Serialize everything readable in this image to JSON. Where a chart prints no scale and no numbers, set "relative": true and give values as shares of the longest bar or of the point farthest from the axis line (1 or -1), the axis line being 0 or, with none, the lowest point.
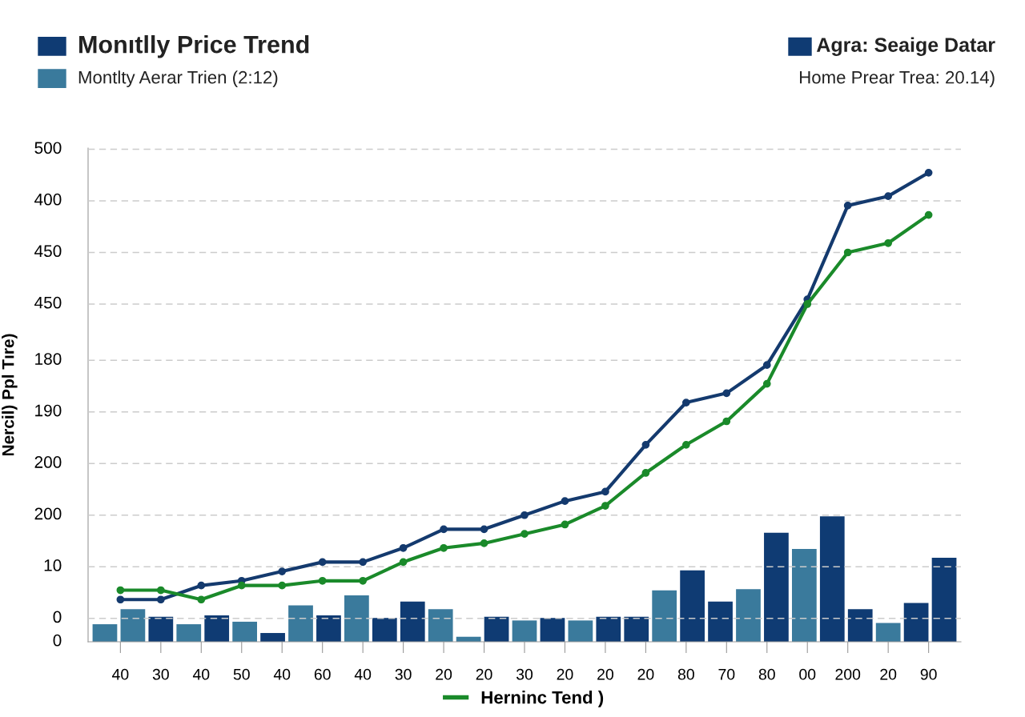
{
  "chart_data": [
    {
      "type": "bar",
      "relative": true,
      "title": "Monıtlly Price Trend",
      "subtitle": "Montlty Aerar Trien (2:12)",
      "categories": [
        null,
        null,
        null,
        null,
        null,
        null,
        null,
        null,
        null,
        null,
        null,
        null,
        null,
        null,
        null,
        null,
        null,
        null,
        null,
        null,
        null,
        null,
        null,
        null,
        null,
        null,
        null,
        null,
        null,
        null,
        null
      ],
      "values": [
        0.14,
        0.26,
        0.2,
        0.14,
        0.21,
        0.16,
        0.07,
        0.29,
        0.21,
        0.37,
        0.19,
        0.32,
        0.26,
        0.04,
        0.2,
        0.17,
        0.19,
        0.17,
        0.2,
        0.2,
        0.41,
        0.57,
        0.32,
        0.42,
        0.87,
        0.74,
        1,
        0.26,
        0.15,
        0.31,
        0.67
      ],
      "colors": [
        "#3a7a9c",
        "#3a7a9c",
        "#0f3b73",
        "#3a7a9c",
        "#0f3b73",
        "#3a7a9c",
        "#0f3b73",
        "#3a7a9c",
        "#0f3b73",
        "#3a7a9c",
        "#0f3b73",
        "#0f3b73",
        "#3a7a9c",
        "#3a7a9c",
        "#0f3b73",
        "#3a7a9c",
        "#0f3b73",
        "#3a7a9c",
        "#0f3b73",
        "#0f3b73",
        "#3a7a9c",
        "#0f3b73",
        "#0f3b73",
        "#3a7a9c",
        "#0f3b73",
        "#3a7a9c",
        "#0f3b73",
        "#0f3b73",
        "#3a7a9c",
        "#0f3b73",
        "#0f3b73"
      ]
    },
    {
      "type": "line",
      "relative": true,
      "legend": "bottom",
      "marker": "circle",
      "line_style": "solid",
      "title": "Agra: Seaige Datar",
      "subtitle": "Home Prear Trea: 20.14)",
      "ylabel": "Nercil) Ppl Tıre)",
      "annotations": [
        "500",
        "400",
        "450",
        "450",
        "180",
        "190",
        "200",
        "200",
        "10",
        "0",
        "0"
      ],
      "ref_lines": [
        {
          "axis": "y",
          "value": 1.05,
          "color": "#cccccc",
          "line_style": "dashed"
        },
        {
          "axis": "y",
          "value": 0.94,
          "color": "#cccccc",
          "line_style": "dashed"
        },
        {
          "axis": "y",
          "value": 0.83,
          "color": "#cccccc",
          "line_style": "dashed"
        },
        {
          "axis": "y",
          "value": 0.72,
          "color": "#cccccc",
          "line_style": "dashed"
        },
        {
          "axis": "y",
          "value": 0.6,
          "color": "#cccccc",
          "line_style": "dashed"
        },
        {
          "axis": "y",
          "value": 0.49,
          "color": "#cccccc",
          "line_style": "dashed"
        },
        {
          "axis": "y",
          "value": 0.38,
          "color": "#cccccc",
          "line_style": "dashed"
        },
        {
          "axis": "y",
          "value": 0.27,
          "color": "#cccccc",
          "line_style": "dashed"
        },
        {
          "axis": "y",
          "value": 0.16,
          "color": "#cccccc",
          "line_style": "dashed"
        },
        {
          "axis": "y",
          "value": 0.05,
          "color": "#cccccc",
          "line_style": "dashed"
        }
      ],
      "categories": [
        "40",
        "30",
        "40",
        "50",
        "40",
        "60",
        "40",
        "30",
        "20",
        "20",
        "30",
        "20",
        "20",
        "20",
        "80",
        "70",
        "80",
        "00",
        "200",
        "20",
        "90"
      ],
      "series": [
        {
          "color": "#143a6e",
          "values": [
            0.09,
            0.09,
            0.12,
            0.13,
            0.15,
            0.17,
            0.17,
            0.2,
            0.24,
            0.24,
            0.27,
            0.3,
            0.32,
            0.42,
            0.51,
            0.53,
            0.59,
            0.73,
            0.93,
            0.95,
            1
          ]
        },
        {
          "name": "Herninc Tend )",
          "color": "#1a8a2a",
          "values": [
            0.11,
            0.11,
            0.09,
            0.12,
            0.12,
            0.13,
            0.13,
            0.17,
            0.2,
            0.21,
            0.23,
            0.25,
            0.29,
            0.36,
            0.42,
            0.47,
            0.55,
            0.72,
            0.83,
            0.85,
            0.91
          ]
        }
      ]
    }
  ]
}
